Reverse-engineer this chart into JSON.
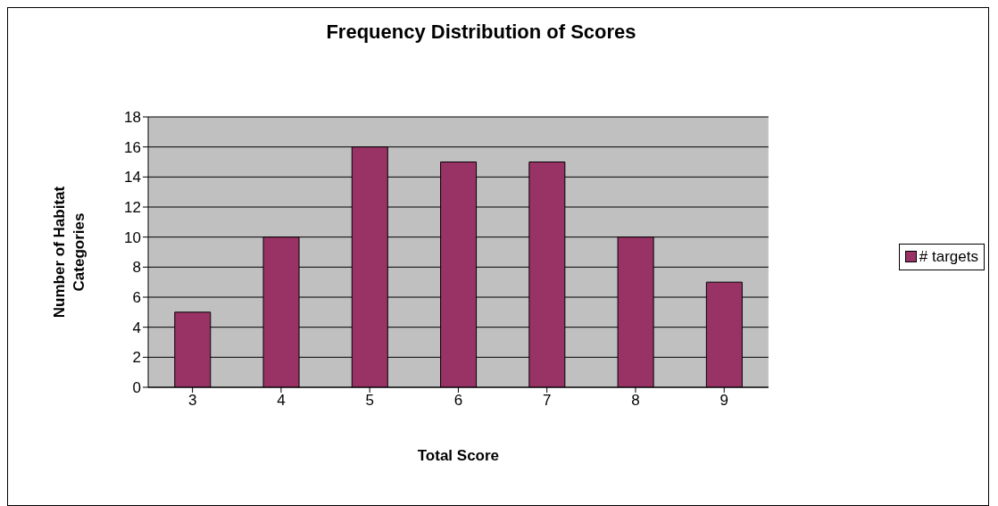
{
  "chart_data": {
    "type": "bar",
    "title": "Frequency Distribution of Scores",
    "xlabel": "Total Score",
    "ylabel": "Number of Habitat Categories",
    "categories": [
      "3",
      "4",
      "5",
      "6",
      "7",
      "8",
      "9"
    ],
    "series": [
      {
        "name": "# targets",
        "color": "#993366",
        "values": [
          5,
          10,
          16,
          15,
          15,
          10,
          7
        ]
      }
    ],
    "ylim": [
      0,
      18
    ],
    "yticks": [
      0,
      2,
      4,
      6,
      8,
      10,
      12,
      14,
      16,
      18
    ],
    "grid": "y",
    "legend": "right"
  }
}
